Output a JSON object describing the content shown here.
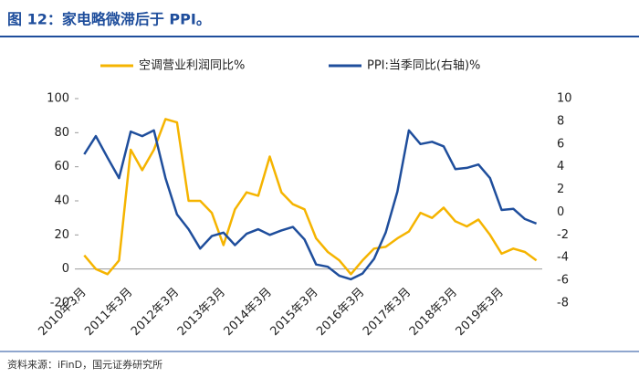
{
  "chart_data": {
    "type": "line",
    "title": "图 12：家电略微滞后于 PPI。",
    "source": "资料来源：iFinD，国元证券研究所",
    "categories": [
      "2010年3月",
      null,
      null,
      null,
      "2011年3月",
      null,
      null,
      null,
      "2012年3月",
      null,
      null,
      null,
      "2013年3月",
      null,
      null,
      null,
      "2014年3月",
      null,
      null,
      null,
      "2015年3月",
      null,
      null,
      null,
      "2016年3月",
      null,
      null,
      null,
      "2017年3月",
      null,
      null,
      null,
      "2018年3月",
      null,
      null,
      null,
      "2019年3月",
      null,
      null,
      null
    ],
    "series": [
      {
        "name": "空调营业利润同比%",
        "color": "#f5b400",
        "values": [
          8,
          0,
          -3,
          5,
          70,
          58,
          70,
          88,
          86,
          40,
          40,
          33,
          14,
          35,
          45,
          43,
          66,
          45,
          38,
          35,
          18,
          10,
          5,
          -3,
          5,
          12,
          13,
          18,
          22,
          33,
          30,
          36,
          28,
          25,
          29,
          20,
          9,
          12,
          10,
          5
        ]
      },
      {
        "name": "PPI:当季同比(右轴)%",
        "color": "#1f4e9c",
        "axis": "y2",
        "values": [
          5.1,
          6.7,
          4.8,
          3.0,
          7.1,
          6.7,
          7.2,
          3.0,
          -0.2,
          -1.5,
          -3.2,
          -2.1,
          -1.8,
          -2.9,
          -1.9,
          -1.5,
          -2.0,
          -1.6,
          -1.3,
          -2.4,
          -4.6,
          -4.8,
          -5.6,
          -5.9,
          -5.4,
          -4.1,
          -1.8,
          1.8,
          7.2,
          6.0,
          6.2,
          5.8,
          3.8,
          3.9,
          4.2,
          3.0,
          0.2,
          0.3,
          -0.6,
          -1.0
        ]
      }
    ],
    "ylim": [
      -20,
      100
    ],
    "yticks": [
      -20,
      0,
      20,
      40,
      60,
      80,
      100
    ],
    "y2lim": [
      -8,
      10
    ],
    "y2ticks": [
      -8,
      -6,
      -4,
      -2,
      0,
      2,
      4,
      6,
      8,
      10
    ],
    "grid": false
  }
}
